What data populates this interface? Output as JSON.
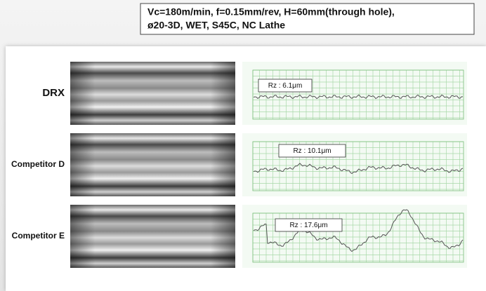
{
  "conditions": {
    "line1": "Vc=180m/min, f=0.15mm/rev, H=60mm(through hole),",
    "line2": "ø20-3D, WET, S45C, NC Lathe"
  },
  "rows": [
    {
      "label": "DRX",
      "roughness": "Rz : 6.1μm"
    },
    {
      "label": "Competitor D",
      "roughness": "Rz : 10.1μm"
    },
    {
      "label": "Competitor E",
      "roughness": "Rz : 17.6μm"
    }
  ]
}
